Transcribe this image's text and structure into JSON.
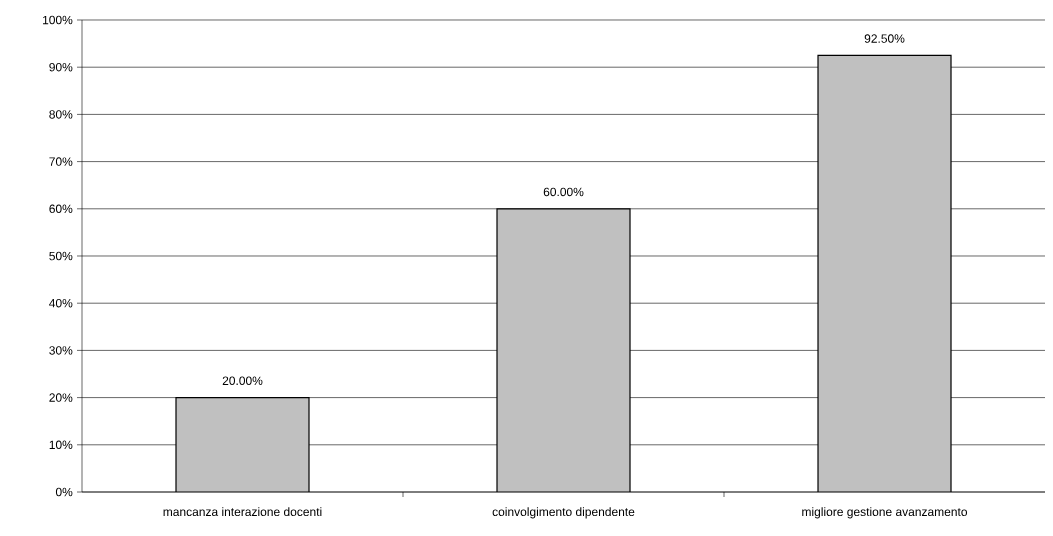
{
  "chart_data": {
    "type": "bar",
    "categories": [
      "mancanza interazione docenti",
      "coinvolgimento dipendente",
      "migliore gestione avanzamento"
    ],
    "values": [
      20,
      60,
      92.5
    ],
    "value_labels": [
      "20.00%",
      "60.00%",
      "92.50%"
    ],
    "color": "#c0c0c0",
    "ylim": [
      0,
      100
    ],
    "yticks": [
      {
        "value": 0,
        "label": "0%"
      },
      {
        "value": 10,
        "label": "10%"
      },
      {
        "value": 20,
        "label": "20%"
      },
      {
        "value": 30,
        "label": "30%"
      },
      {
        "value": 40,
        "label": "40%"
      },
      {
        "value": 50,
        "label": "50%"
      },
      {
        "value": 60,
        "label": "60%"
      },
      {
        "value": 70,
        "label": "70%"
      },
      {
        "value": 80,
        "label": "80%"
      },
      {
        "value": 90,
        "label": "90%"
      },
      {
        "value": 100,
        "label": "100%"
      }
    ],
    "grid": "y"
  }
}
